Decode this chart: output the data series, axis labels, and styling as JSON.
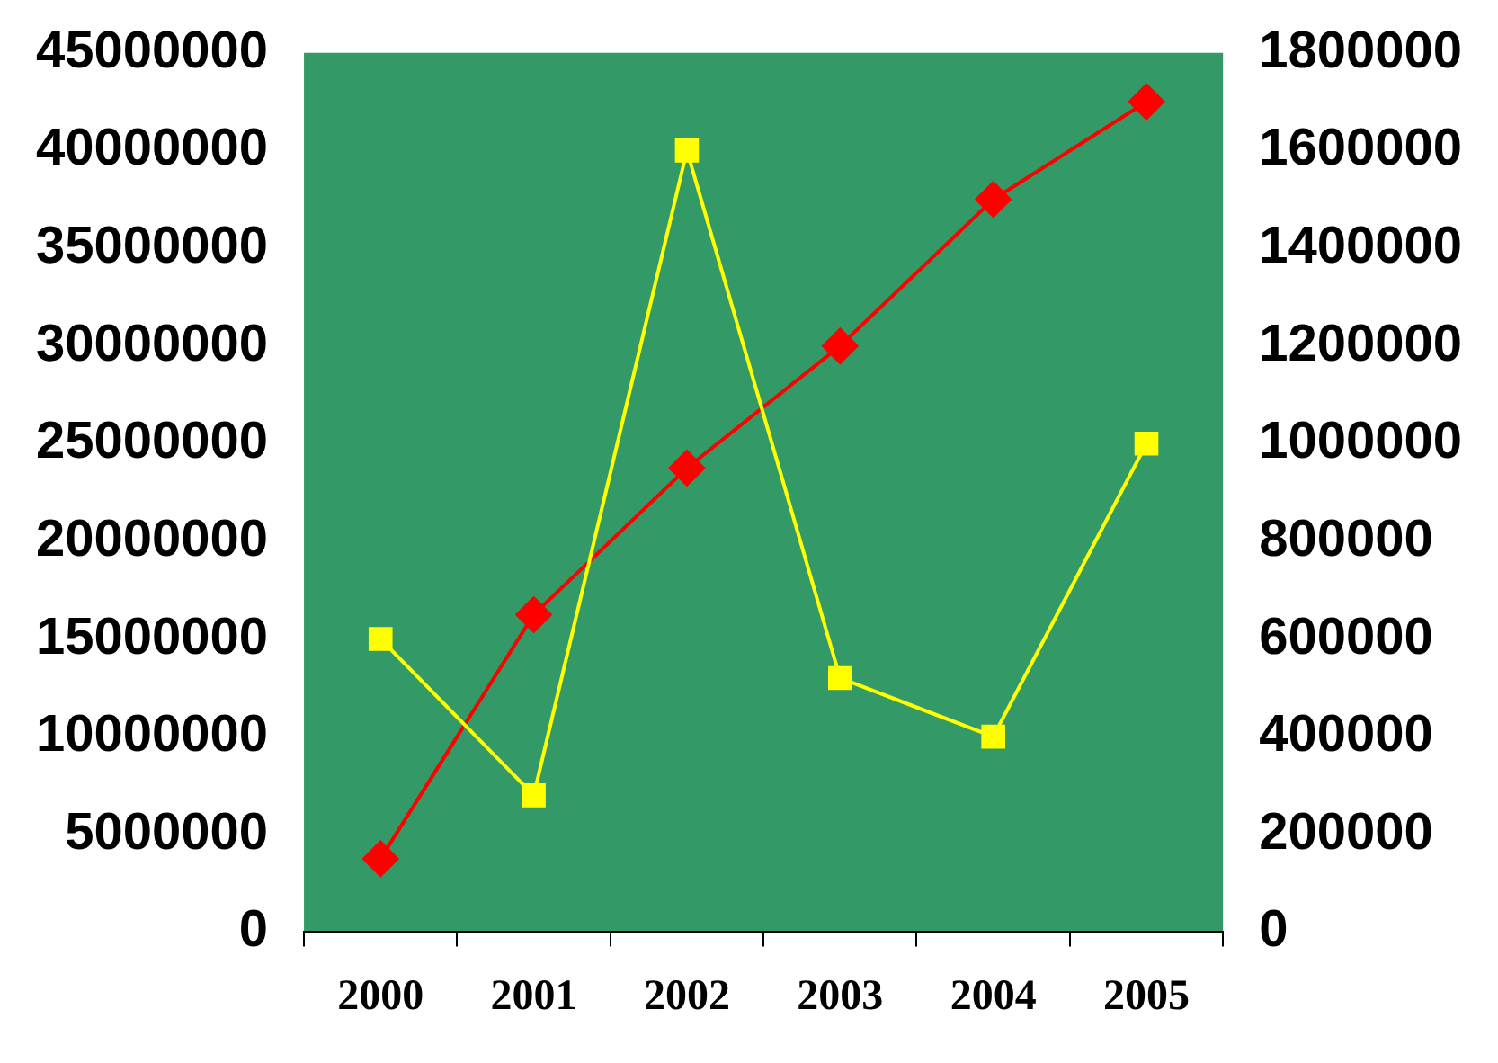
{
  "chart_data": {
    "type": "line",
    "categories": [
      "2000",
      "2001",
      "2002",
      "2003",
      "2004",
      "2005"
    ],
    "series": [
      {
        "color": "#ffff00",
        "marker": "square",
        "values": [
          15000000,
          7000000,
          40000000,
          13000000,
          10000000,
          25000000
        ]
      },
      {
        "color": "#ff0000",
        "marker": "diamond",
        "axis": "y2",
        "values": [
          150000,
          650000,
          950000,
          1200000,
          1500000,
          1700000
        ]
      }
    ],
    "ylim": [
      0,
      45000000
    ],
    "yticks": [
      0,
      5000000,
      10000000,
      15000000,
      20000000,
      25000000,
      30000000,
      35000000,
      40000000,
      45000000
    ],
    "y2lim": [
      0,
      1800000
    ],
    "y2ticks": [
      0,
      200000,
      400000,
      600000,
      800000,
      1000000,
      1200000,
      1400000,
      1600000,
      1800000
    ],
    "grid": false,
    "legend": false
  }
}
